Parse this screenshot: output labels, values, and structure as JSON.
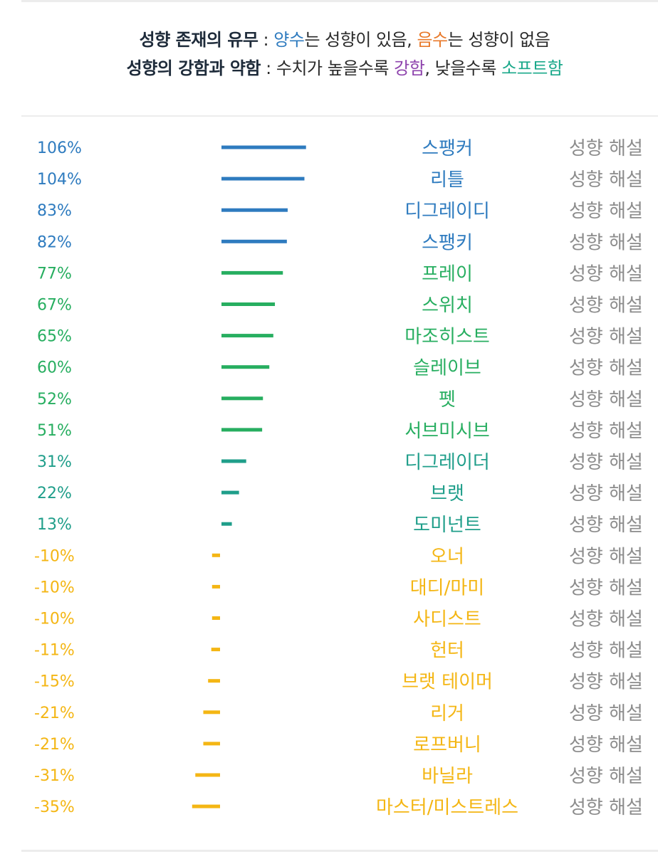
{
  "legend": {
    "line1": {
      "term": "성향 존재의 유무",
      "sep": " : ",
      "positive": "양수",
      "positive_rest": "는 성향이 있음, ",
      "negative": "음수",
      "negative_rest": "는 성향이 없음"
    },
    "line2": {
      "term": "성향의 강함과 약함",
      "sep": " : ",
      "text1": "수치가 높을수록 ",
      "strong": "강함",
      "text2": ", 낮을수록 ",
      "soft": "소프트함"
    }
  },
  "colors": {
    "positive": "#2e7bbf",
    "negative": "#e8792a",
    "strong": "#8e44ad",
    "soft": "#1aa88a",
    "tier_high": "#2e7bbf",
    "tier_mid": "#27ae60",
    "tier_low": "#1f9e8a",
    "tier_negative": "#f4b614",
    "detail_text": "#8c8c8c"
  },
  "chart_data": {
    "type": "bar",
    "orientation": "horizontal",
    "unit": "%",
    "detail_label": "성향 해설",
    "rows": [
      {
        "value": 106,
        "label": "106%",
        "name": "스팽커",
        "tier": "high"
      },
      {
        "value": 104,
        "label": "104%",
        "name": "리틀",
        "tier": "high"
      },
      {
        "value": 83,
        "label": "83%",
        "name": "디그레이디",
        "tier": "high"
      },
      {
        "value": 82,
        "label": "82%",
        "name": "스팽키",
        "tier": "high"
      },
      {
        "value": 77,
        "label": "77%",
        "name": "프레이",
        "tier": "mid"
      },
      {
        "value": 67,
        "label": "67%",
        "name": "스위치",
        "tier": "mid"
      },
      {
        "value": 65,
        "label": "65%",
        "name": "마조히스트",
        "tier": "mid"
      },
      {
        "value": 60,
        "label": "60%",
        "name": "슬레이브",
        "tier": "mid"
      },
      {
        "value": 52,
        "label": "52%",
        "name": "펫",
        "tier": "mid"
      },
      {
        "value": 51,
        "label": "51%",
        "name": "서브미시브",
        "tier": "mid"
      },
      {
        "value": 31,
        "label": "31%",
        "name": "디그레이더",
        "tier": "low"
      },
      {
        "value": 22,
        "label": "22%",
        "name": "브랫",
        "tier": "low"
      },
      {
        "value": 13,
        "label": "13%",
        "name": "도미넌트",
        "tier": "low"
      },
      {
        "value": -10,
        "label": "-10%",
        "name": "오너",
        "tier": "negative"
      },
      {
        "value": -10,
        "label": "-10%",
        "name": "대디/마미",
        "tier": "negative"
      },
      {
        "value": -10,
        "label": "-10%",
        "name": "사디스트",
        "tier": "negative"
      },
      {
        "value": -11,
        "label": "-11%",
        "name": "헌터",
        "tier": "negative"
      },
      {
        "value": -15,
        "label": "-15%",
        "name": "브랫 테이머",
        "tier": "negative"
      },
      {
        "value": -21,
        "label": "-21%",
        "name": "리거",
        "tier": "negative"
      },
      {
        "value": -21,
        "label": "-21%",
        "name": "로프버니",
        "tier": "negative"
      },
      {
        "value": -31,
        "label": "-31%",
        "name": "바닐라",
        "tier": "negative"
      },
      {
        "value": -35,
        "label": "-35%",
        "name": "마스터/미스트레스",
        "tier": "negative"
      }
    ]
  }
}
